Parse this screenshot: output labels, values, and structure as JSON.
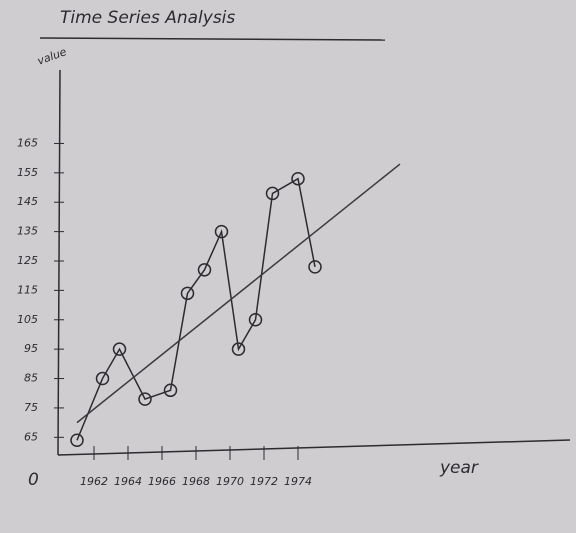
{
  "chart_data": {
    "type": "line",
    "title": "Time Series Analysis",
    "y_label": "value",
    "x_label": "year",
    "origin_label": "0",
    "xlim": [
      1960,
      1990
    ],
    "xticks": [
      1962,
      1964,
      1966,
      1968,
      1970,
      1972,
      1974
    ],
    "ylim": [
      60,
      190
    ],
    "yticks": [
      65,
      75,
      85,
      95,
      105,
      115,
      125,
      135,
      145,
      155,
      165
    ],
    "series": [
      {
        "color": "#2b2b30",
        "x": [
          1961,
          1962.5,
          1963.5,
          1965,
          1966.5,
          1967.5,
          1968.5,
          1969.5,
          1970.5,
          1971.5,
          1972.5,
          1974,
          1975
        ],
        "values": [
          64,
          85,
          95,
          78,
          81,
          114,
          122,
          135,
          95,
          105,
          148,
          153,
          123
        ]
      },
      {
        "color": "#3a3a3f",
        "x": [
          1961,
          1980
        ],
        "values": [
          70,
          158
        ]
      }
    ]
  }
}
